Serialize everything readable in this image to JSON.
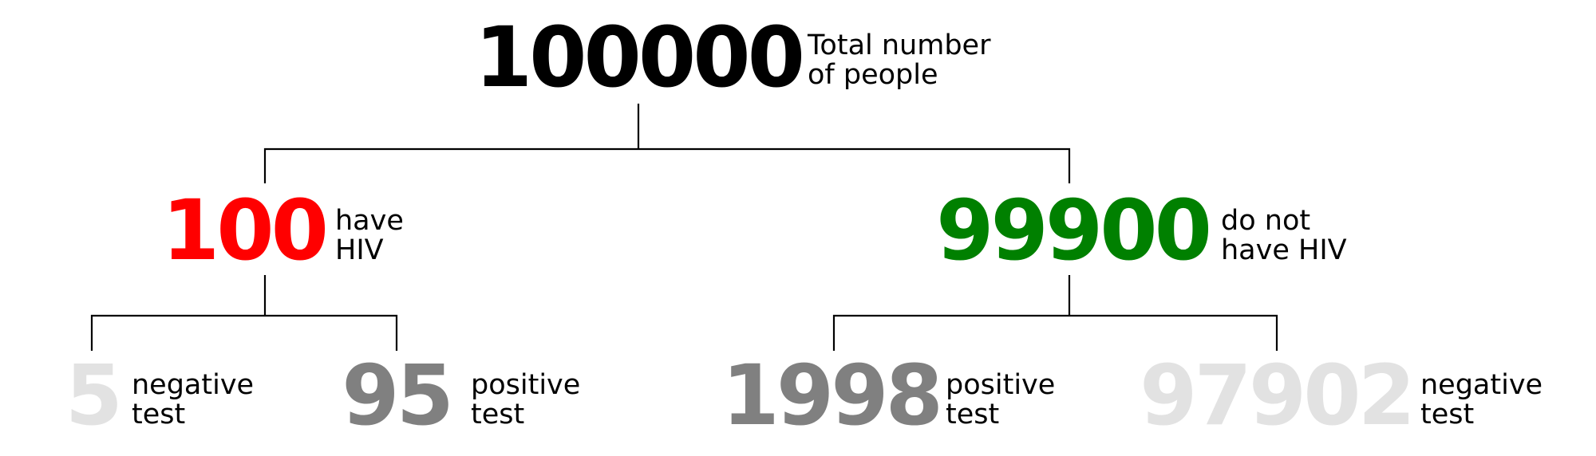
{
  "colors": {
    "text": "#000000",
    "have_hiv": "#ff0000",
    "no_hiv": "#008000",
    "positive_test": "#808080",
    "negative_test": "#e2e2e2",
    "edges": "#000000"
  },
  "nodes": {
    "total": {
      "value": "100000",
      "label_line1": "Total number",
      "label_line2": "of people"
    },
    "have_hiv": {
      "value": "100",
      "label_line1": "have",
      "label_line2": "HIV"
    },
    "no_hiv": {
      "value": "99900",
      "label_line1": "do not",
      "label_line2": "have HIV"
    },
    "hiv_negative": {
      "value": "5",
      "label_line1": "negative",
      "label_line2": "test"
    },
    "hiv_positive": {
      "value": "95",
      "label_line1": "positive",
      "label_line2": "test"
    },
    "nohiv_positive": {
      "value": "1998",
      "label_line1": "positive",
      "label_line2": "test"
    },
    "nohiv_negative": {
      "value": "97902",
      "label_line1": "negative",
      "label_line2": "test"
    }
  }
}
